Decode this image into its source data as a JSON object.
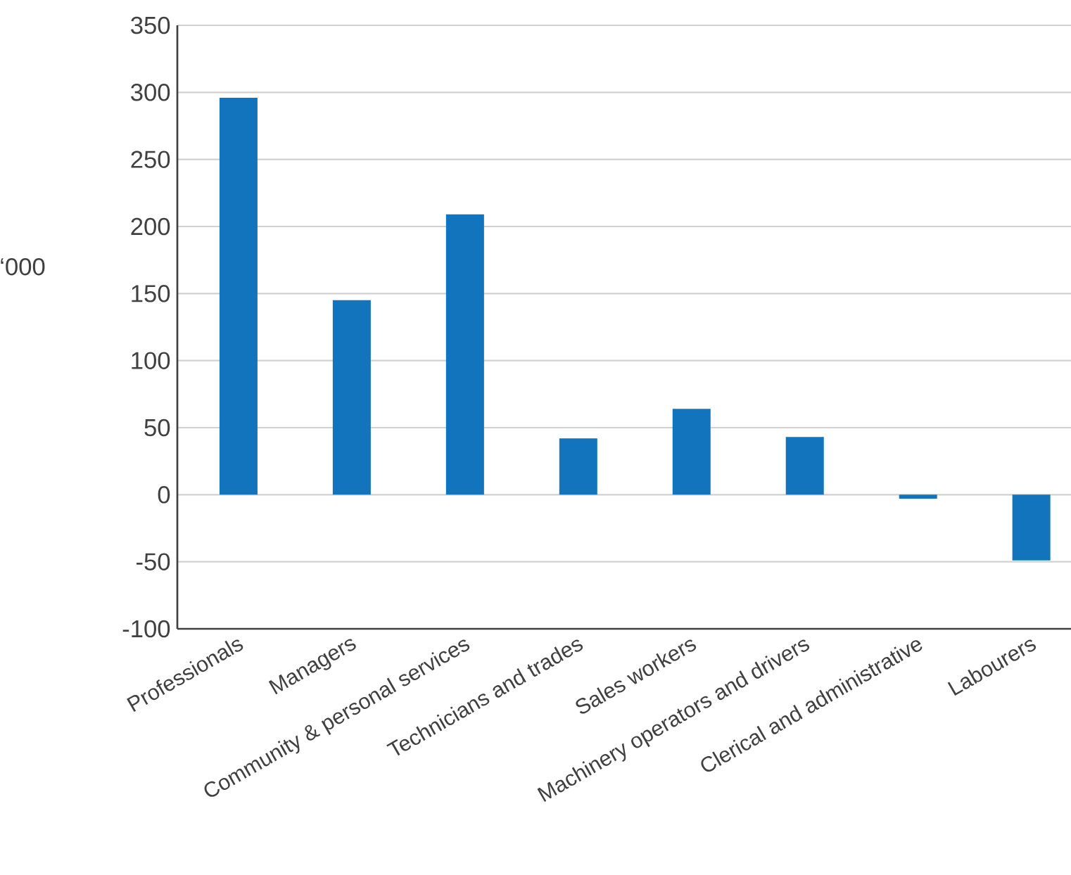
{
  "chart_data": {
    "type": "bar",
    "ylabel": "‘000",
    "categories": [
      "Professionals",
      "Managers",
      "Community & personal services",
      "Technicians and trades",
      "Sales workers",
      "Machinery  operators and drivers",
      "Clerical and administrative",
      "Labourers"
    ],
    "values": [
      296,
      145,
      209,
      42,
      64,
      43,
      -3,
      -49
    ],
    "color": "#1174bc",
    "ylim": [
      -100,
      350
    ],
    "yticks": [
      -100,
      -50,
      0,
      50,
      100,
      150,
      200,
      250,
      300,
      350
    ],
    "grid": "y"
  }
}
